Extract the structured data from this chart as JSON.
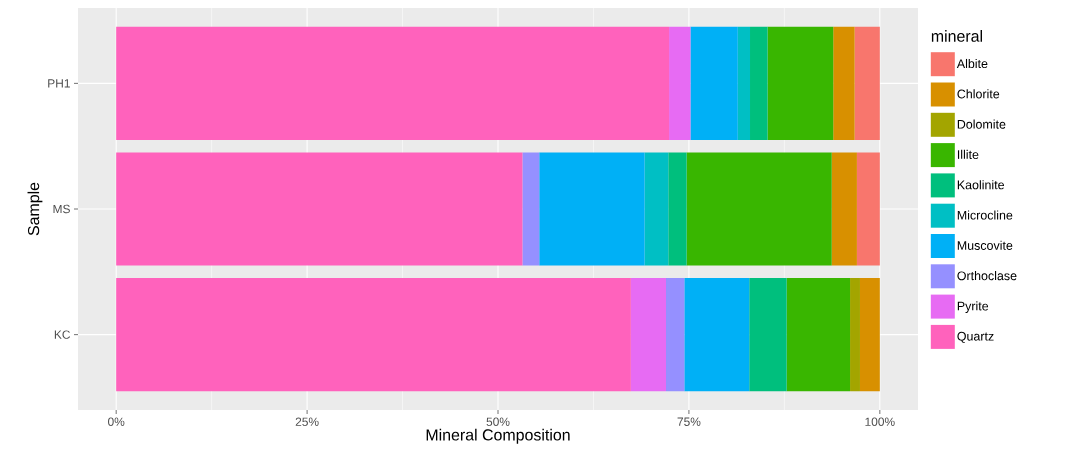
{
  "chart_data": {
    "type": "bar",
    "orientation": "horizontal",
    "stacked": true,
    "xlabel": "Mineral Composition",
    "ylabel": "Sample",
    "legend_title": "mineral",
    "legend": "right",
    "grid": true,
    "categories": [
      "PH1",
      "MS",
      "KC"
    ],
    "xlim": [
      -5,
      105
    ],
    "xticks": [
      {
        "value": 0,
        "label": "0%"
      },
      {
        "value": 25,
        "label": "25%"
      },
      {
        "value": 50,
        "label": "50%"
      },
      {
        "value": 75,
        "label": "75%"
      },
      {
        "value": 100,
        "label": "100%"
      }
    ],
    "series": [
      {
        "name": "Quartz",
        "color": "#ff62bc",
        "values": [
          72.4,
          53.2,
          67.4
        ]
      },
      {
        "name": "Pyrite",
        "color": "#e76bf3",
        "values": [
          2.8,
          null,
          4.6
        ]
      },
      {
        "name": "Orthoclase",
        "color": "#9590ff",
        "values": [
          null,
          2.2,
          2.4
        ]
      },
      {
        "name": "Muscovite",
        "color": "#00b0f6",
        "values": [
          6.2,
          13.8,
          8.5
        ]
      },
      {
        "name": "Microcline",
        "color": "#00bfc4",
        "values": [
          1.6,
          3.1,
          null
        ]
      },
      {
        "name": "Kaolinite",
        "color": "#00bf7d",
        "values": [
          2.3,
          2.4,
          4.9
        ]
      },
      {
        "name": "Illite",
        "color": "#39b600",
        "values": [
          8.6,
          19.0,
          8.3
        ]
      },
      {
        "name": "Dolomite",
        "color": "#a3a500",
        "values": [
          null,
          null,
          1.3
        ]
      },
      {
        "name": "Chlorite",
        "color": "#d89000",
        "values": [
          2.8,
          3.3,
          2.6
        ]
      },
      {
        "name": "Albite",
        "color": "#f8766d",
        "values": [
          3.3,
          3.0,
          null
        ]
      }
    ]
  }
}
